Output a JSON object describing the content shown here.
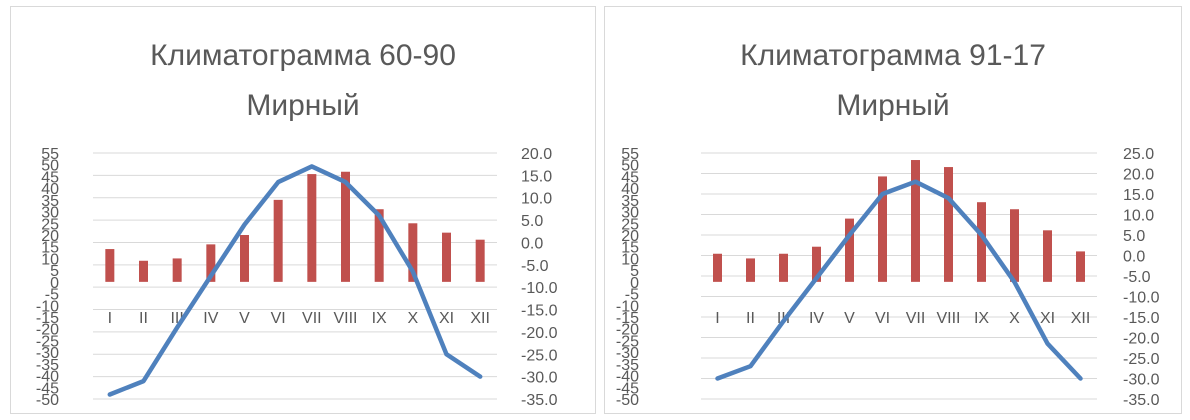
{
  "chart_data": [
    {
      "type": "bar+line",
      "title_lines": [
        "Климатограмма 60-90",
        "Мирный"
      ],
      "categories": [
        "I",
        "II",
        "III",
        "IV",
        "V",
        "VI",
        "VII",
        "VIII",
        "IX",
        "X",
        "XI",
        "XII"
      ],
      "left_axis": {
        "ticks": [
          "55",
          "50",
          "45",
          "40",
          "35",
          "30",
          "25",
          "20",
          "15",
          "10",
          "5",
          "0",
          "-5",
          "-10",
          "-15",
          "-20",
          "-25",
          "-30",
          "-35",
          "-40",
          "-45",
          "-50"
        ],
        "ylim": [
          -50,
          55
        ]
      },
      "right_axis": {
        "ticks": [
          "20.0",
          "15.0",
          "10.0",
          "5.0",
          "0.0",
          "-5.0",
          "-10.0",
          "-15.0",
          "-20.0",
          "-25.0",
          "-30.0",
          "-35.0"
        ],
        "ylim": [
          -35,
          20
        ]
      },
      "series": [
        {
          "type": "bar",
          "axis": "left",
          "color": "#c0504d",
          "values": [
            14,
            9,
            10,
            16,
            20,
            35,
            46,
            47,
            31,
            25,
            21,
            18
          ]
        },
        {
          "type": "line",
          "axis": "right",
          "color": "#4f81bd",
          "values": [
            -34.0,
            -31.0,
            -19.0,
            -7.5,
            4.0,
            13.5,
            17.0,
            13.5,
            6.0,
            -6.5,
            -25.0,
            -30.0
          ]
        }
      ],
      "grid": true
    },
    {
      "type": "bar+line",
      "title_lines": [
        "Климатограмма 91-17",
        "Мирный"
      ],
      "categories": [
        "I",
        "II",
        "III",
        "IV",
        "V",
        "VI",
        "VII",
        "VIII",
        "IX",
        "X",
        "XI",
        "XII"
      ],
      "left_axis": {
        "ticks": [
          "55",
          "50",
          "45",
          "40",
          "35",
          "30",
          "25",
          "20",
          "15",
          "10",
          "5",
          "0",
          "-5",
          "-10",
          "-15",
          "-20",
          "-25",
          "-30",
          "-35",
          "-40",
          "-45",
          "-50"
        ],
        "ylim": [
          -50,
          55
        ]
      },
      "right_axis": {
        "ticks": [
          "25.0",
          "20.0",
          "15.0",
          "10.0",
          "5.0",
          "0.0",
          "-5.0",
          "-10.0",
          "-15.0",
          "-20.0",
          "-25.0",
          "-30.0",
          "-35.0"
        ],
        "ylim": [
          -35,
          25
        ]
      },
      "series": [
        {
          "type": "bar",
          "axis": "left",
          "color": "#c0504d",
          "values": [
            12,
            10,
            12,
            15,
            27,
            45,
            52,
            49,
            34,
            31,
            22,
            13
          ]
        },
        {
          "type": "line",
          "axis": "right",
          "color": "#4f81bd",
          "values": [
            -30.0,
            -27.0,
            -16.0,
            -5.5,
            5.0,
            15.0,
            18.0,
            14.0,
            5.0,
            -6.5,
            -21.5,
            -30.0
          ]
        }
      ],
      "grid": true
    }
  ]
}
